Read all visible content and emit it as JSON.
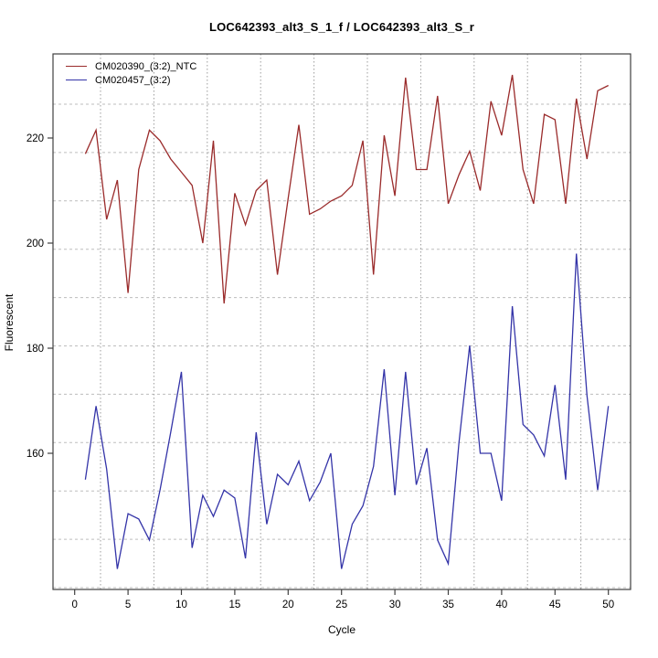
{
  "title": "LOC642393_alt3_S_1_f / LOC642393_alt3_S_r",
  "axes": {
    "x_label": "Cycle",
    "y_label": "Fluorescent",
    "x_ticks": [
      0,
      5,
      10,
      15,
      20,
      25,
      30,
      35,
      40,
      45,
      50
    ],
    "y_ticks": [
      160,
      180,
      200,
      220
    ]
  },
  "legend": [
    {
      "label": "CM020390_(3:2)_NTC",
      "color": "#9a2b2b"
    },
    {
      "label": "CM020457_(3:2)",
      "color": "#3434a8"
    }
  ],
  "colors": {
    "series_red": "#9a2b2b",
    "series_blue": "#3434a8",
    "axis": "#3f3f3f",
    "grid_horizontal": "#bdbdbd",
    "grid_vertical": "#9d9d9d",
    "background": "#ffffff"
  },
  "chart_data": {
    "type": "line",
    "title": "LOC642393_alt3_S_1_f / LOC642393_alt3_S_r",
    "xlabel": "Cycle",
    "ylabel": "Fluorescent",
    "xlim": [
      -2,
      52
    ],
    "ylim": [
      134,
      236
    ],
    "grid": true,
    "legend_position": "top-left",
    "x_start": 1,
    "x_end": 50,
    "series": [
      {
        "name": "CM020390_(3:2)_NTC",
        "color": "#9a2b2b",
        "values": [
          217,
          221.5,
          204.5,
          212,
          190.5,
          214,
          221.5,
          219.5,
          216,
          213.5,
          211,
          200,
          219.5,
          188.5,
          209.5,
          203.5,
          210,
          212,
          194,
          208.5,
          222.5,
          205.5,
          206.5,
          208,
          209,
          211,
          219.5,
          194,
          220.5,
          209,
          231.5,
          214,
          214,
          228,
          207.5,
          213,
          217.5,
          210,
          227,
          220.5,
          232,
          214,
          207.5,
          224.5,
          223.5,
          207.5,
          227.5,
          216,
          229,
          230
        ]
      },
      {
        "name": "CM020457_(3:2)",
        "color": "#3434a8",
        "values": [
          155,
          169,
          157,
          138,
          148.5,
          147.5,
          143.5,
          153,
          164,
          175.5,
          142,
          152,
          148,
          153,
          151.5,
          140,
          164,
          146.5,
          156,
          154,
          158.5,
          151,
          154.5,
          160,
          138,
          146.5,
          150,
          157.5,
          176,
          152,
          175.5,
          154,
          161,
          143.5,
          139,
          162,
          180.5,
          160,
          160,
          151,
          188,
          165.5,
          163.5,
          159.5,
          173,
          155,
          198,
          171,
          153,
          169
        ]
      }
    ]
  }
}
